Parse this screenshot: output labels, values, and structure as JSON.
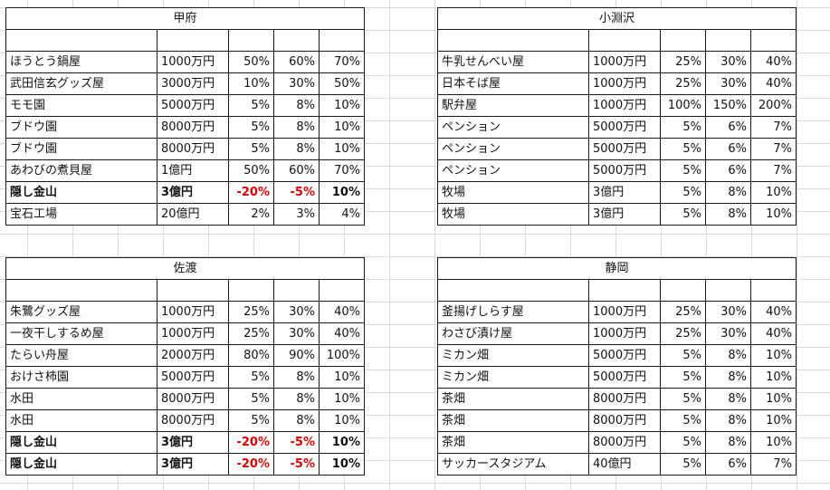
{
  "colors": {
    "negative": "#e00000",
    "border": "#1a1a1a",
    "gridline": "#d9d9d9"
  },
  "tables": [
    {
      "title": "甲府",
      "rows": [
        {
          "name": "ほうとう鍋屋",
          "amount": "1000万円",
          "p1": "50%",
          "p2": "60%",
          "p3": "70%"
        },
        {
          "name": "武田信玄グッズ屋",
          "amount": "3000万円",
          "p1": "10%",
          "p2": "30%",
          "p3": "50%"
        },
        {
          "name": "モモ園",
          "amount": "5000万円",
          "p1": "5%",
          "p2": "8%",
          "p3": "10%"
        },
        {
          "name": "ブドウ園",
          "amount": "8000万円",
          "p1": "5%",
          "p2": "8%",
          "p3": "10%"
        },
        {
          "name": "ブドウ園",
          "amount": "8000万円",
          "p1": "5%",
          "p2": "8%",
          "p3": "10%"
        },
        {
          "name": "あわびの煮貝屋",
          "amount": "1億円",
          "p1": "50%",
          "p2": "60%",
          "p3": "70%"
        },
        {
          "name": "隠し金山",
          "amount": "3億円",
          "p1": "-20%",
          "p2": "-5%",
          "p3": "10%"
        },
        {
          "name": "宝石工場",
          "amount": "20億円",
          "p1": "2%",
          "p2": "3%",
          "p3": "4%"
        }
      ]
    },
    {
      "title": "小淵沢",
      "rows": [
        {
          "name": "牛乳せんべい屋",
          "amount": "1000万円",
          "p1": "25%",
          "p2": "30%",
          "p3": "40%"
        },
        {
          "name": "日本そば屋",
          "amount": "1000万円",
          "p1": "25%",
          "p2": "30%",
          "p3": "40%"
        },
        {
          "name": "駅弁屋",
          "amount": "1000万円",
          "p1": "100%",
          "p2": "150%",
          "p3": "200%"
        },
        {
          "name": "ペンション",
          "amount": "5000万円",
          "p1": "5%",
          "p2": "6%",
          "p3": "7%"
        },
        {
          "name": "ペンション",
          "amount": "5000万円",
          "p1": "5%",
          "p2": "6%",
          "p3": "7%"
        },
        {
          "name": "ペンション",
          "amount": "5000万円",
          "p1": "5%",
          "p2": "6%",
          "p3": "7%"
        },
        {
          "name": "牧場",
          "amount": "3億円",
          "p1": "5%",
          "p2": "8%",
          "p3": "10%"
        },
        {
          "name": "牧場",
          "amount": "3億円",
          "p1": "5%",
          "p2": "8%",
          "p3": "10%"
        }
      ]
    },
    {
      "title": "佐渡",
      "rows": [
        {
          "name": "朱鷺グッズ屋",
          "amount": "1000万円",
          "p1": "25%",
          "p2": "30%",
          "p3": "40%"
        },
        {
          "name": "一夜干しするめ屋",
          "amount": "1000万円",
          "p1": "25%",
          "p2": "30%",
          "p3": "40%"
        },
        {
          "name": "たらい舟屋",
          "amount": "2000万円",
          "p1": "80%",
          "p2": "90%",
          "p3": "100%"
        },
        {
          "name": "おけさ柿園",
          "amount": "5000万円",
          "p1": "5%",
          "p2": "8%",
          "p3": "10%"
        },
        {
          "name": "水田",
          "amount": "8000万円",
          "p1": "5%",
          "p2": "8%",
          "p3": "10%"
        },
        {
          "name": "水田",
          "amount": "8000万円",
          "p1": "5%",
          "p2": "8%",
          "p3": "10%"
        },
        {
          "name": "隠し金山",
          "amount": "3億円",
          "p1": "-20%",
          "p2": "-5%",
          "p3": "10%"
        },
        {
          "name": "隠し金山",
          "amount": "3億円",
          "p1": "-20%",
          "p2": "-5%",
          "p3": "10%"
        }
      ]
    },
    {
      "title": "静岡",
      "rows": [
        {
          "name": "釜揚げしらす屋",
          "amount": "1000万円",
          "p1": "25%",
          "p2": "30%",
          "p3": "40%"
        },
        {
          "name": "わさび漬け屋",
          "amount": "1000万円",
          "p1": "25%",
          "p2": "30%",
          "p3": "40%"
        },
        {
          "name": "ミカン畑",
          "amount": "5000万円",
          "p1": "5%",
          "p2": "8%",
          "p3": "10%"
        },
        {
          "name": "ミカン畑",
          "amount": "5000万円",
          "p1": "5%",
          "p2": "8%",
          "p3": "10%"
        },
        {
          "name": "茶畑",
          "amount": "8000万円",
          "p1": "5%",
          "p2": "8%",
          "p3": "10%"
        },
        {
          "name": "茶畑",
          "amount": "8000万円",
          "p1": "5%",
          "p2": "8%",
          "p3": "10%"
        },
        {
          "name": "茶畑",
          "amount": "8000万円",
          "p1": "5%",
          "p2": "8%",
          "p3": "10%"
        },
        {
          "name": "サッカースタジアム",
          "amount": "40億円",
          "p1": "5%",
          "p2": "6%",
          "p3": "7%"
        }
      ]
    }
  ]
}
